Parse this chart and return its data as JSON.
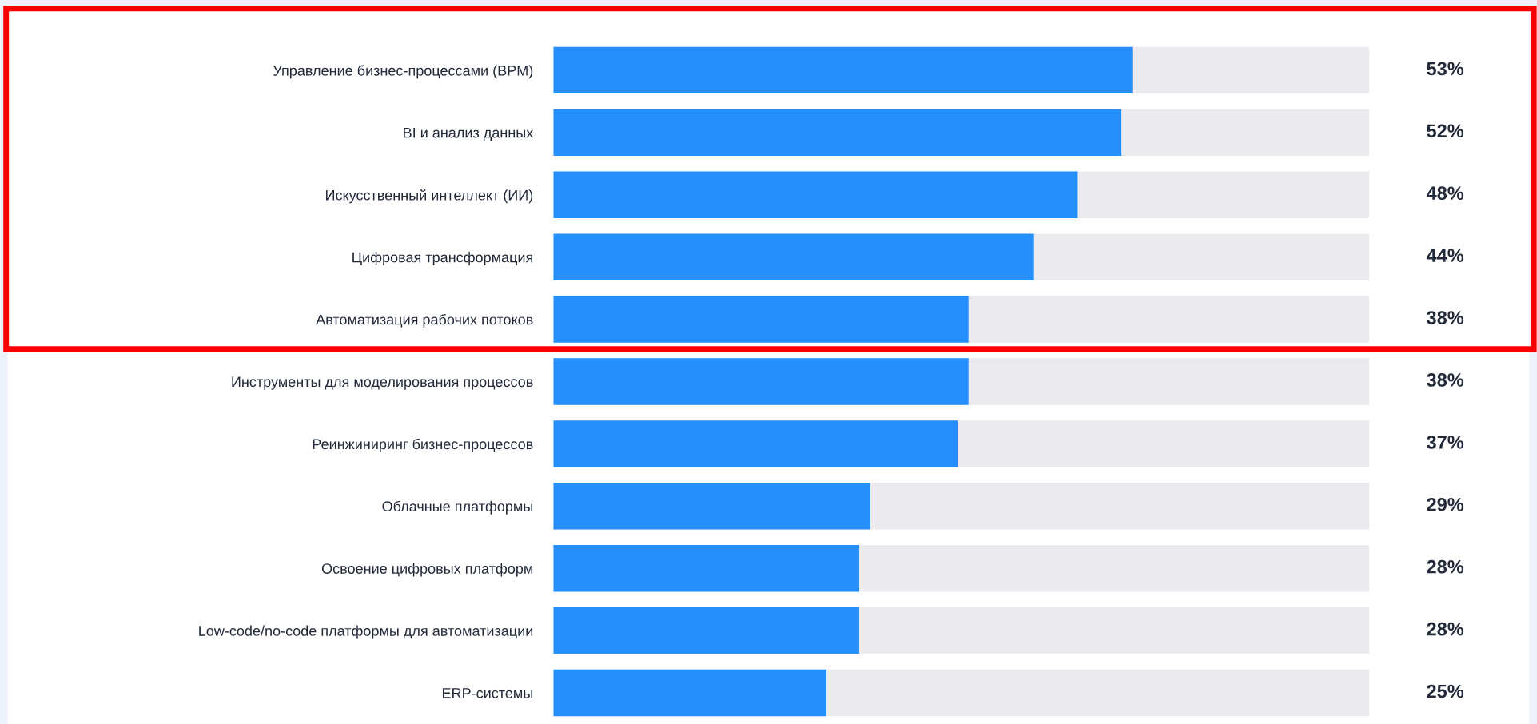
{
  "chart_data": {
    "type": "bar",
    "orientation": "horizontal",
    "categories": [
      "Управление бизнес-процессами (BPM)",
      "BI и анализ данных",
      "Искусственный интеллект (ИИ)",
      "Цифровая трансформация",
      "Автоматизация рабочих потоков",
      "Инструменты для моделирования процессов",
      "Реинжиниринг бизнес-процессов",
      "Облачные платформы",
      "Освоение цифровых платформ",
      "Low-code/no-code платформы для автоматизации",
      "ERP-системы"
    ],
    "values": [
      53,
      52,
      48,
      44,
      38,
      38,
      37,
      29,
      28,
      28,
      25
    ],
    "value_labels": [
      "53%",
      "52%",
      "48%",
      "44%",
      "38%",
      "38%",
      "37%",
      "29%",
      "28%",
      "28%",
      "25%"
    ],
    "color": "#2590fb",
    "xlim": [
      0,
      74.7
    ],
    "tick_labels": "y",
    "grid": false,
    "legend": false
  }
}
